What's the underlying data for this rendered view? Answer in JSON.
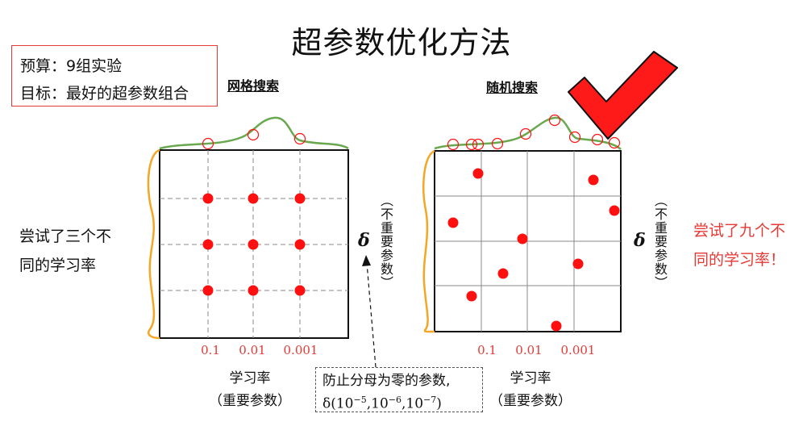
{
  "title": "超参数优化方法",
  "budget": {
    "line1": "预算：9组实验",
    "line2": "目标：最好的超参数组合"
  },
  "grid_search": {
    "heading": "网格搜索",
    "side_text_line1": "尝试了三个不",
    "side_text_line2": "同的学习率",
    "delta_symbol": "δ",
    "delta_label": "（不重要参数）",
    "x_ticks": [
      "0.1",
      "0.01",
      "0.001"
    ],
    "axis_title_line1": "学习率",
    "axis_title_line2": "（重要参数）"
  },
  "random_search": {
    "heading": "随机搜索",
    "side_text_line1": "尝试了九个不",
    "side_text_line2": "同的学习率！",
    "delta_symbol": "δ",
    "delta_label": "（不重要参数）",
    "x_ticks": [
      "0.1",
      "0.01",
      "0.001"
    ],
    "axis_title_line1": "学习率",
    "axis_title_line2": "（重要参数）"
  },
  "note": {
    "line1": "防止分母为零的参数,",
    "line2_prefix": "δ(10",
    "exp1": "−5",
    "sep1": ",10",
    "exp2": "−6",
    "sep2": ",10",
    "exp3": "−7",
    "line2_suffix": ")"
  },
  "colors": {
    "point": "#ff1010",
    "curve": "#6aa84f",
    "side_curve": "#f5a623",
    "check": "#ff1a1a",
    "box": "#e53935"
  }
}
